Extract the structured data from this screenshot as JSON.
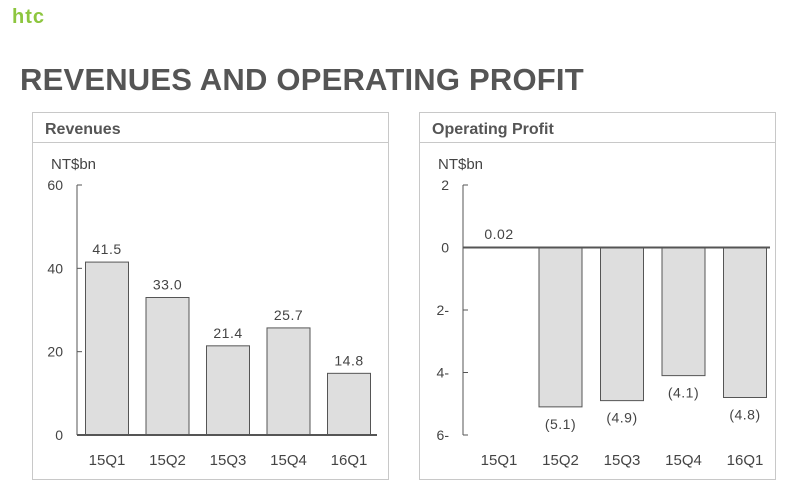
{
  "header": {
    "logo_text": "htc",
    "title": "REVENUES AND OPERATING PROFIT"
  },
  "colors": {
    "logo": "#8dc63f",
    "bar_fill": "#dedede",
    "bar_stroke": "#555555",
    "axis": "#555555",
    "title": "#555555"
  },
  "chart_data": [
    {
      "type": "bar",
      "title": "Revenues",
      "ylabel": "NT$bn",
      "categories": [
        "15Q1",
        "15Q2",
        "15Q3",
        "15Q4",
        "16Q1"
      ],
      "values": [
        41.5,
        33.0,
        21.4,
        25.7,
        14.8
      ],
      "data_labels": [
        "41.5",
        "33.0",
        "21.4",
        "25.7",
        "14.8"
      ],
      "ylim": [
        0,
        60
      ],
      "yticks": [
        0,
        20,
        40,
        60
      ],
      "ytick_labels": [
        "0",
        "20",
        "40",
        "60"
      ],
      "grid": false,
      "legend": "none"
    },
    {
      "type": "bar",
      "title": "Operating Profit",
      "ylabel": "NT$bn",
      "categories": [
        "15Q1",
        "15Q2",
        "15Q3",
        "15Q4",
        "16Q1"
      ],
      "values": [
        0.02,
        -5.1,
        -4.9,
        -4.1,
        -4.8
      ],
      "data_labels": [
        "0.02",
        "(5.1)",
        "(4.9)",
        "(4.1)",
        "(4.8)"
      ],
      "ylim": [
        -6,
        2
      ],
      "yticks": [
        2,
        0,
        -2,
        -4,
        -6
      ],
      "ytick_labels": [
        "2",
        "0",
        "2-",
        "4-",
        "6-"
      ],
      "grid": false,
      "legend": "none"
    }
  ]
}
